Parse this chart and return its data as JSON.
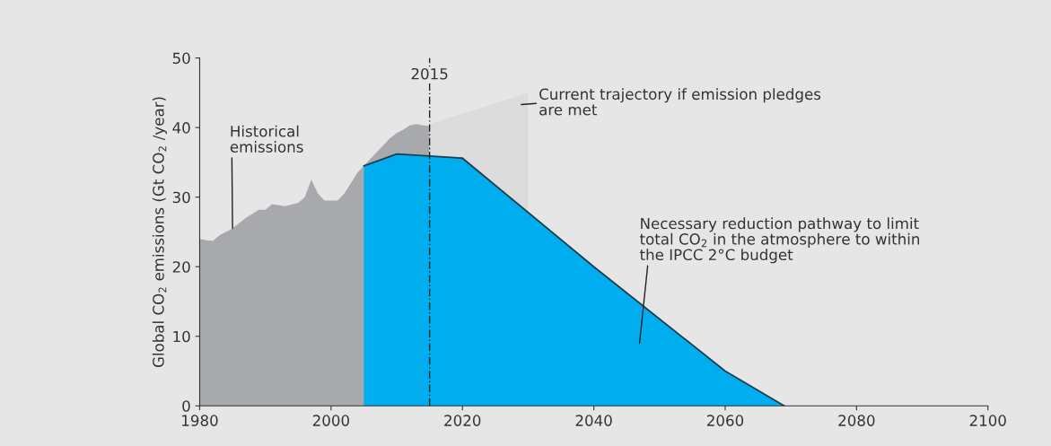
{
  "chart_data": {
    "type": "area",
    "ylabel": "Global CO$_{2}$ emissions (Gt CO$_{2}$ /year)",
    "xlim": [
      1980,
      2100
    ],
    "xticks": [
      1980,
      2000,
      2020,
      2040,
      2060,
      2080,
      2100
    ],
    "ylim": [
      0,
      50
    ],
    "yticks": [
      0,
      10,
      20,
      30,
      40,
      50
    ],
    "grid": false,
    "legend": false,
    "series": [
      {
        "color": "#dcdcdd",
        "x": [
          2015,
          2030,
          2030
        ],
        "values": [
          40.5,
          45,
          0
        ]
      },
      {
        "color": "#a7a9ac",
        "x": [
          1980,
          1981,
          1982,
          1983,
          1985,
          1987,
          1989,
          1990,
          1991,
          1993,
          1995,
          1996,
          1997,
          1998,
          1999,
          2001,
          2002,
          2003,
          2004,
          2005,
          2006,
          2007,
          2008,
          2009,
          2010,
          2011,
          2012,
          2013,
          2014,
          2015
        ],
        "values": [
          24,
          23.8,
          23.7,
          24.5,
          25.5,
          27,
          28.2,
          28.2,
          29,
          28.7,
          29.2,
          30,
          32.5,
          30.5,
          29.5,
          29.5,
          30.5,
          32,
          33.5,
          34.5,
          35.5,
          36.5,
          37.5,
          38.5,
          39.2,
          39.7,
          40.3,
          40.5,
          40.3,
          40.2
        ]
      },
      {
        "color": "#00aeef",
        "x": [
          2005,
          2010,
          2015,
          2020,
          2040,
          2060,
          2069
        ],
        "values": [
          34.5,
          36.2,
          35.9,
          35.6,
          20,
          5,
          0
        ]
      }
    ],
    "ref_lines": [
      {
        "axis": "x",
        "value": 2015,
        "label": "2015",
        "color": "#222222",
        "line_style": "dashed"
      }
    ],
    "annotations": [
      {
        "text": "Historical\nemissions",
        "x": 1985,
        "y": 25.5
      },
      "Current trajectory if emission pledges\nare met",
      "Necessary reduction pathway to limit\ntotal CO$_{2}$ in the atmosphere to within\nthe IPCC 2°C budget"
    ]
  }
}
